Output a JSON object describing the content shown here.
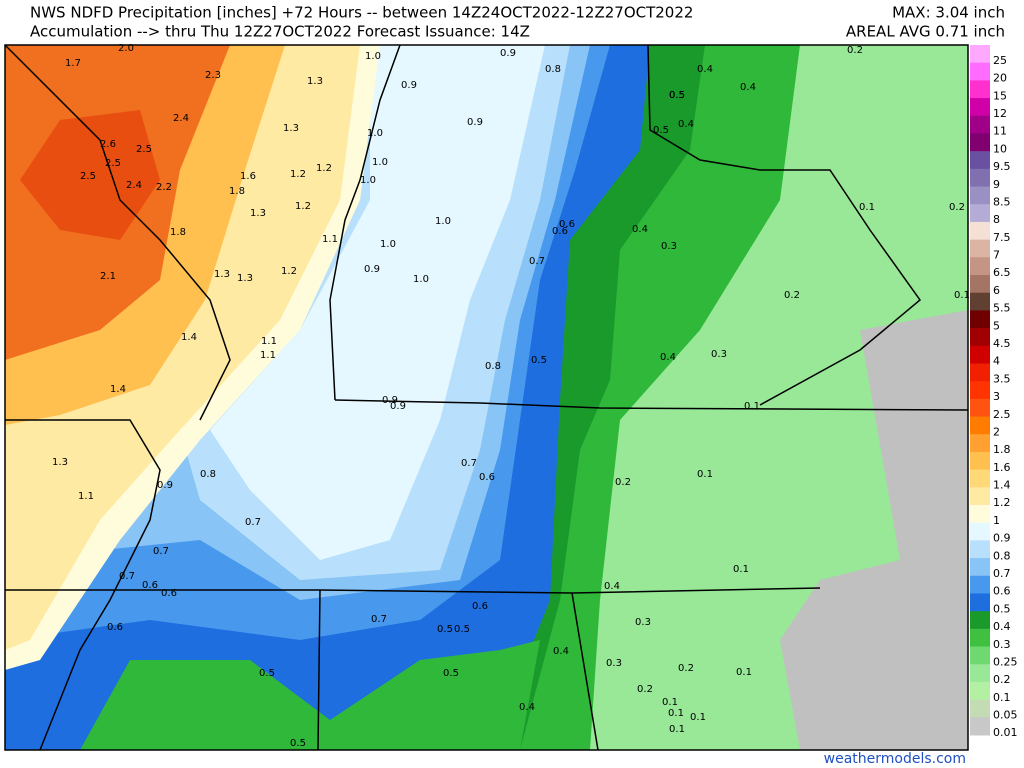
{
  "header": {
    "title": "NWS NDFD Precipitation [inches] +72 Hours -- between 14Z24OCT2022-12Z27OCT2022",
    "subtitle": "Accumulation --> thru Thu 12Z27OCT2022   Forecast Issuance: 14Z",
    "max": "MAX: 3.04 inch",
    "avg": "AREAL AVG 0.71 inch"
  },
  "legend": [
    {
      "label": "25",
      "color": "#ffa8ff"
    },
    {
      "label": "20",
      "color": "#ff6cff"
    },
    {
      "label": "15",
      "color": "#ff30d0"
    },
    {
      "label": "12",
      "color": "#d000a8"
    },
    {
      "label": "11",
      "color": "#a00088"
    },
    {
      "label": "10",
      "color": "#800070"
    },
    {
      "label": "9.5",
      "color": "#6a50a0"
    },
    {
      "label": "9",
      "color": "#8070b0"
    },
    {
      "label": "8.5",
      "color": "#9a90c4"
    },
    {
      "label": "8",
      "color": "#b4acd6"
    },
    {
      "label": "7.5",
      "color": "#f4e0d4"
    },
    {
      "label": "7",
      "color": "#dcb4a4"
    },
    {
      "label": "6.5",
      "color": "#c49484"
    },
    {
      "label": "6",
      "color": "#a47464"
    },
    {
      "label": "5.5",
      "color": "#604030"
    },
    {
      "label": "5",
      "color": "#700000"
    },
    {
      "label": "4.5",
      "color": "#a00000"
    },
    {
      "label": "4",
      "color": "#d00000"
    },
    {
      "label": "3.5",
      "color": "#f02000"
    },
    {
      "label": "3",
      "color": "#ff3400"
    },
    {
      "label": "2.5",
      "color": "#ff5410"
    },
    {
      "label": "2",
      "color": "#ff7c00"
    },
    {
      "label": "1.8",
      "color": "#ffa030"
    },
    {
      "label": "1.6",
      "color": "#ffc050"
    },
    {
      "label": "1.4",
      "color": "#ffd878"
    },
    {
      "label": "1.2",
      "color": "#ffeaa4"
    },
    {
      "label": "1",
      "color": "#fffcdc"
    },
    {
      "label": "0.9",
      "color": "#e6f8ff"
    },
    {
      "label": "0.8",
      "color": "#b8e0fc"
    },
    {
      "label": "0.7",
      "color": "#88c4f6"
    },
    {
      "label": "0.6",
      "color": "#4898ee"
    },
    {
      "label": "0.5",
      "color": "#1e6ee0"
    },
    {
      "label": "0.4",
      "color": "#1a9a2a"
    },
    {
      "label": "0.3",
      "color": "#40c040"
    },
    {
      "label": "0.25",
      "color": "#70d870"
    },
    {
      "label": "0.2",
      "color": "#98e898"
    },
    {
      "label": "0.1",
      "color": "#b4f0a4"
    },
    {
      "label": "0.05",
      "color": "#c4dcb4"
    },
    {
      "label": "0.01",
      "color": "#c8c8c8"
    }
  ],
  "map_labels": [
    "2.0",
    "1.7",
    "2.3",
    "1.3",
    "1.0",
    "0.9",
    "0.8",
    "0.2",
    "0.4",
    "0.4",
    "0.9",
    "0.9",
    "0.5",
    "2.4",
    "1.3",
    "1.0",
    "0.5",
    "0.4",
    "2.6",
    "2.5",
    "2.5",
    "1.6",
    "1.2",
    "1.2",
    "1.0",
    "1.0",
    "2.5",
    "2.4",
    "2.2",
    "1.8",
    "1.3",
    "1.2",
    "1.0",
    "0.6",
    "0.6",
    "0.4",
    "0.1",
    "0.2",
    "1.8",
    "1.1",
    "1.0",
    "0.3",
    "0.9",
    "1.0",
    "0.7",
    "1.3",
    "1.3",
    "1.2",
    "2.1",
    "0.2",
    "0.1",
    "1.4",
    "1.1",
    "1.1",
    "0.4",
    "0.3",
    "0.5",
    "0.8",
    "1.4",
    "0.9",
    "0.9",
    "0.1",
    "1.3",
    "0.7",
    "0.6",
    "0.1",
    "0.8",
    "0.9",
    "0.2",
    "1.1",
    "0.7",
    "0.7",
    "0.1",
    "0.7",
    "0.6",
    "0.6",
    "0.4",
    "0.6",
    "0.7",
    "0.3",
    "0.6",
    "0.5",
    "0.5",
    "0.5",
    "0.4",
    "0.3",
    "0.2",
    "0.1",
    "0.5",
    "0.5",
    "0.2",
    "0.1",
    "0.1",
    "0.1",
    "0.4",
    "0.1",
    "0.5"
  ],
  "footer": "weathermodels.com"
}
